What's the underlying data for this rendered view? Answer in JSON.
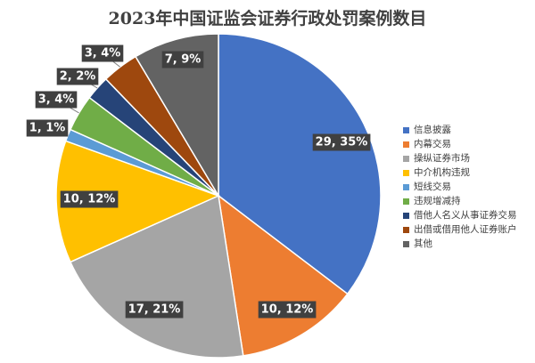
{
  "chart_data": {
    "type": "pie",
    "title": "2023年中国证监会证券行政处罚案例数目",
    "categories": [
      "信息披露",
      "内幕交易",
      "操纵证券市场",
      "中介机构违规",
      "短线交易",
      "违规增减持",
      "借他人名义从事证券交易",
      "出借或借用他人证券账户",
      "其他"
    ],
    "values": [
      29,
      10,
      17,
      10,
      1,
      3,
      2,
      3,
      7
    ],
    "data_labels": [
      "29, 35%",
      "10, 12%",
      "17, 21%",
      "10, 12%",
      "1, 1%",
      "3, 4%",
      "2, 2%",
      "3, 4%",
      "7, 9%"
    ],
    "colors": [
      "#4472C4",
      "#ED7D31",
      "#A5A5A5",
      "#FFC000",
      "#5B9BD5",
      "#70AD47",
      "#264478",
      "#9E480E",
      "#636363"
    ],
    "legend_position": "right"
  }
}
